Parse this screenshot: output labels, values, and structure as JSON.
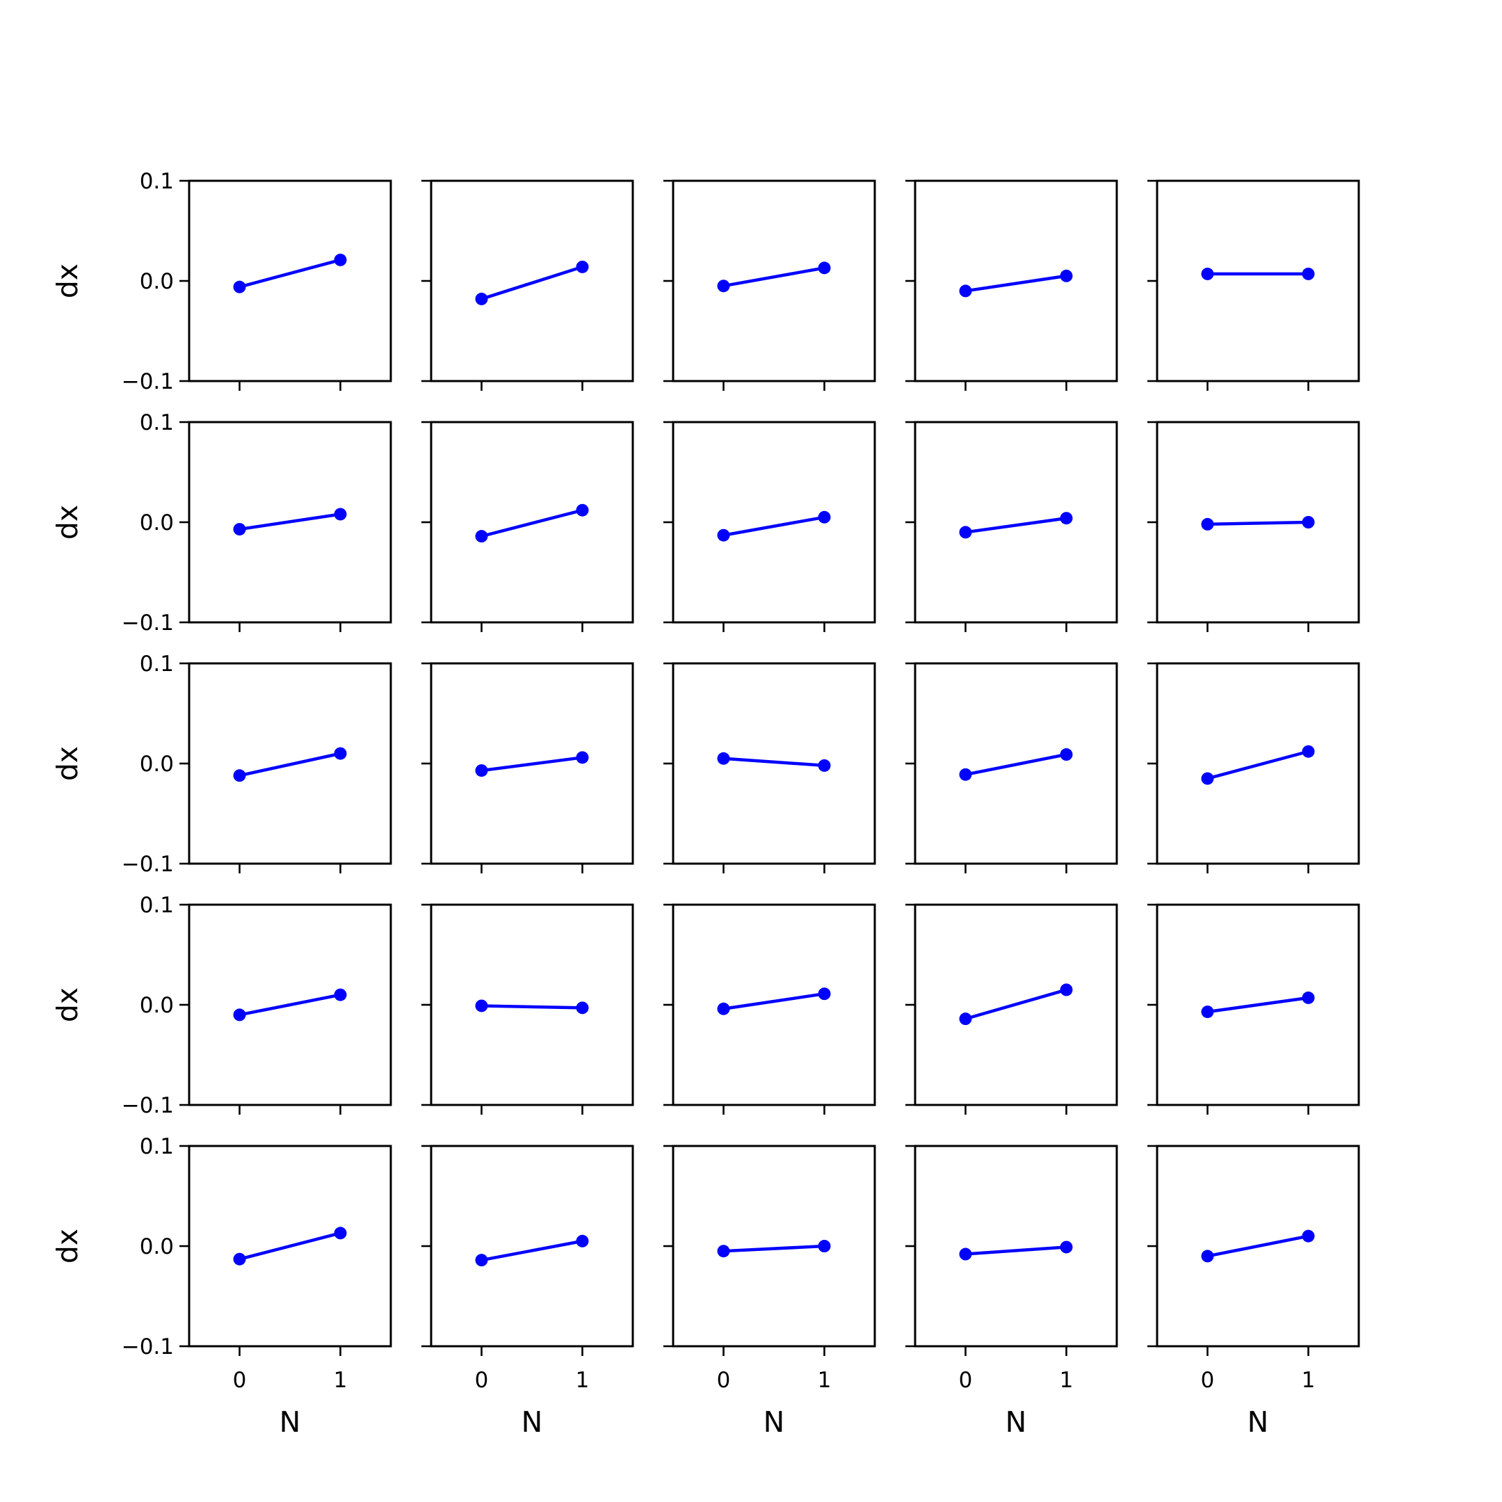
{
  "chart_data": {
    "type": "line",
    "layout": "5x5 grid of small multiples",
    "xlabel": "N",
    "ylabel": "dx",
    "x": [
      0,
      1
    ],
    "xticks": [
      "0",
      "1"
    ],
    "xlim": [
      -0.5,
      1.5
    ],
    "ylim": [
      -0.1,
      0.1
    ],
    "yticks": [
      "0.1",
      "0.0",
      "−0.1"
    ],
    "ytick_values": [
      0.1,
      0.0,
      -0.1
    ],
    "color": "#0000ff",
    "marker": "circle",
    "grid": false,
    "panels": [
      [
        -0.006,
        0.021
      ],
      [
        -0.018,
        0.014
      ],
      [
        -0.005,
        0.013
      ],
      [
        -0.01,
        0.005
      ],
      [
        0.007,
        0.007
      ],
      [
        -0.007,
        0.008
      ],
      [
        -0.014,
        0.012
      ],
      [
        -0.013,
        0.005
      ],
      [
        -0.01,
        0.004
      ],
      [
        -0.002,
        0.0
      ],
      [
        -0.012,
        0.01
      ],
      [
        -0.007,
        0.006
      ],
      [
        0.005,
        -0.002
      ],
      [
        -0.011,
        0.009
      ],
      [
        -0.015,
        0.012
      ],
      [
        -0.01,
        0.01
      ],
      [
        -0.001,
        -0.003
      ],
      [
        -0.004,
        0.011
      ],
      [
        -0.014,
        0.015
      ],
      [
        -0.007,
        0.007
      ],
      [
        -0.013,
        0.013
      ],
      [
        -0.014,
        0.005
      ],
      [
        -0.005,
        0.0
      ],
      [
        -0.008,
        -0.001
      ],
      [
        -0.01,
        0.01
      ]
    ]
  }
}
